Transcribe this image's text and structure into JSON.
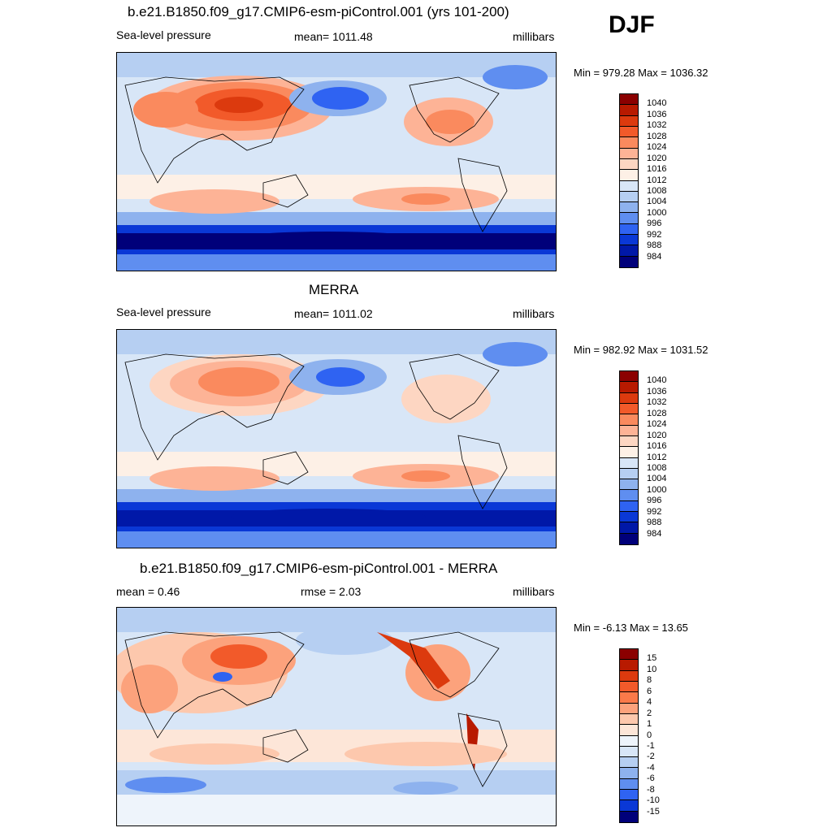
{
  "header": {
    "season": "DJF"
  },
  "panels": [
    {
      "title": "b.e21.B1850.f09_g17.CMIP6-esm-piControl.001 (yrs 101-200)",
      "left_label": "Sea-level pressure",
      "center_label": "mean= 1011.48",
      "right_label": "millibars",
      "minmax": "Min = 979.28 Max = 1036.32",
      "colorbar": {
        "labels": [
          "1040",
          "1036",
          "1032",
          "1028",
          "1024",
          "1020",
          "1016",
          "1012",
          "1008",
          "1004",
          "1000",
          "996",
          "992",
          "988",
          "984"
        ],
        "colors": [
          "#8b0000",
          "#b81a00",
          "#dc3a0e",
          "#f25a2a",
          "#fa8a5e",
          "#fdb396",
          "#fdd6c2",
          "#fdf0e6",
          "#d8e6f7",
          "#b6cff2",
          "#8eb2ee",
          "#5f8ef0",
          "#2f63f2",
          "#0a38d6",
          "#0018a8",
          "#00007a"
        ]
      }
    },
    {
      "title": "MERRA",
      "left_label": "Sea-level pressure",
      "center_label": "mean= 1011.02",
      "right_label": "millibars",
      "minmax": "Min = 982.92 Max = 1031.52",
      "colorbar": {
        "labels": [
          "1040",
          "1036",
          "1032",
          "1028",
          "1024",
          "1020",
          "1016",
          "1012",
          "1008",
          "1004",
          "1000",
          "996",
          "992",
          "988",
          "984"
        ],
        "colors": [
          "#8b0000",
          "#b81a00",
          "#dc3a0e",
          "#f25a2a",
          "#fa8a5e",
          "#fdb396",
          "#fdd6c2",
          "#fdf0e6",
          "#d8e6f7",
          "#b6cff2",
          "#8eb2ee",
          "#5f8ef0",
          "#2f63f2",
          "#0a38d6",
          "#0018a8",
          "#00007a"
        ]
      }
    },
    {
      "title": "b.e21.B1850.f09_g17.CMIP6-esm-piControl.001 - MERRA",
      "left_label": "mean =   0.46",
      "center_label": "rmse =   2.03",
      "right_label": "millibars",
      "minmax": "Min =  -6.13 Max =  13.65",
      "colorbar": {
        "labels": [
          "15",
          "10",
          "8",
          "6",
          "4",
          "2",
          "1",
          "0",
          "-1",
          "-2",
          "-4",
          "-6",
          "-8",
          "-10",
          "-15"
        ],
        "colors": [
          "#8b0000",
          "#b81a00",
          "#dc3a0e",
          "#f25a2a",
          "#fa7a4a",
          "#fca27c",
          "#fdc8ad",
          "#fde6d8",
          "#eef4fb",
          "#d8e6f7",
          "#b6cff2",
          "#8eb2ee",
          "#5f8ef0",
          "#2f63f2",
          "#0a38d6",
          "#00007a"
        ]
      }
    }
  ]
}
